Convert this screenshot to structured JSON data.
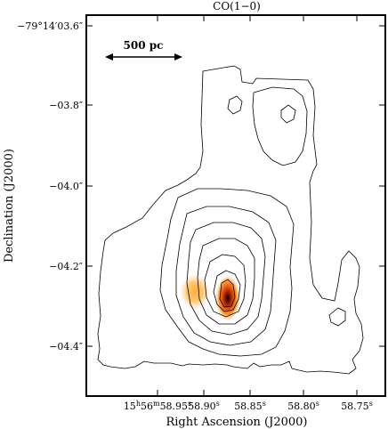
{
  "chart_data": {
    "type": "heatmap",
    "title": "CO(1−0)",
    "xlabel": "Right Ascension (J2000)",
    "ylabel": "Declination (J2000)",
    "x_ticks": [
      {
        "h": "15",
        "m": "56",
        "s": "58.95",
        "label": "15h56m58.95s"
      },
      {
        "s": "58.90",
        "label": "58.90s"
      },
      {
        "s": "58.85",
        "label": "58.85s"
      },
      {
        "s": "58.80",
        "label": "58.80s"
      },
      {
        "s": "58.75",
        "label": "58.75s"
      }
    ],
    "y_ticks": [
      {
        "label": "−79°14′03.6″",
        "value": -3.6
      },
      {
        "label": "−03.8″",
        "value": -3.8
      },
      {
        "label": "−04.0″",
        "value": -4.0
      },
      {
        "label": "−04.2″",
        "value": -4.2
      },
      {
        "label": "−04.4″",
        "value": -4.4
      }
    ],
    "scalebar": {
      "label": "500 pc"
    },
    "colormap": [
      "#ffd9a0",
      "#ff9a2a",
      "#e04a0a",
      "#8a1a00",
      "#000000"
    ]
  }
}
